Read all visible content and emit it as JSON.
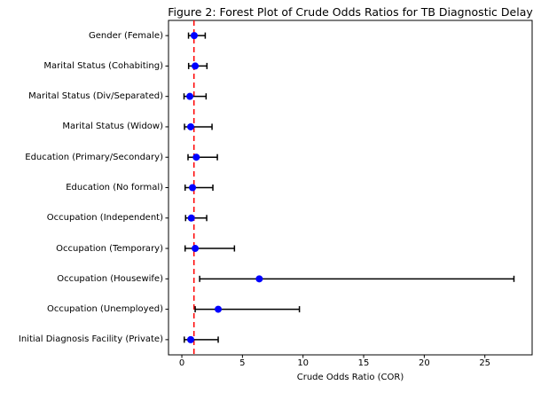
{
  "figure": {
    "title": "Figure 2: Forest Plot of Crude Odds Ratios for TB Diagnostic Delay",
    "xlabel": "Crude Odds Ratio (COR)",
    "background_color": "#ffffff",
    "frame_color": "#000000"
  },
  "chart_data": {
    "type": "scatter",
    "subtype": "forest_plot_with_error_bars",
    "title": "Figure 2: Forest Plot of Crude Odds Ratios for TB Diagnostic Delay",
    "xlabel": "Crude Odds Ratio (COR)",
    "ylabel": "",
    "xlim": [
      -1.1,
      28.9
    ],
    "x_ticks": [
      0,
      5,
      10,
      15,
      20,
      25
    ],
    "grid": false,
    "legend_position": "none",
    "reference_line": {
      "x": 1,
      "color": "#ff0000",
      "style": "dashed"
    },
    "marker_color": "#0000ff",
    "errorbar_color": "#000000",
    "points": [
      {
        "label": "Gender (Female)",
        "or": 1.02,
        "ci_low": 0.55,
        "ci_high": 1.93
      },
      {
        "label": "Marital Status (Cohabiting)",
        "or": 1.1,
        "ci_low": 0.56,
        "ci_high": 2.07
      },
      {
        "label": "Marital Status (Div/Separated)",
        "or": 0.66,
        "ci_low": 0.18,
        "ci_high": 2.0
      },
      {
        "label": "Marital Status (Widow)",
        "or": 0.73,
        "ci_low": 0.22,
        "ci_high": 2.49
      },
      {
        "label": "Education (Primary/Secondary)",
        "or": 1.19,
        "ci_low": 0.51,
        "ci_high": 2.93
      },
      {
        "label": "Education (No formal)",
        "or": 0.88,
        "ci_low": 0.27,
        "ci_high": 2.56
      },
      {
        "label": "Occupation (Independent)",
        "or": 0.78,
        "ci_low": 0.31,
        "ci_high": 2.05
      },
      {
        "label": "Occupation (Temporary)",
        "or": 1.1,
        "ci_low": 0.27,
        "ci_high": 4.34
      },
      {
        "label": "Occupation (Housewife)",
        "or": 6.39,
        "ci_low": 1.47,
        "ci_high": 27.4
      },
      {
        "label": "Occupation (Unemployed)",
        "or": 3.0,
        "ci_low": 1.1,
        "ci_high": 9.7
      },
      {
        "label": "Initial Diagnosis Facility (Private)",
        "or": 0.73,
        "ci_low": 0.2,
        "ci_high": 3.0
      }
    ]
  }
}
